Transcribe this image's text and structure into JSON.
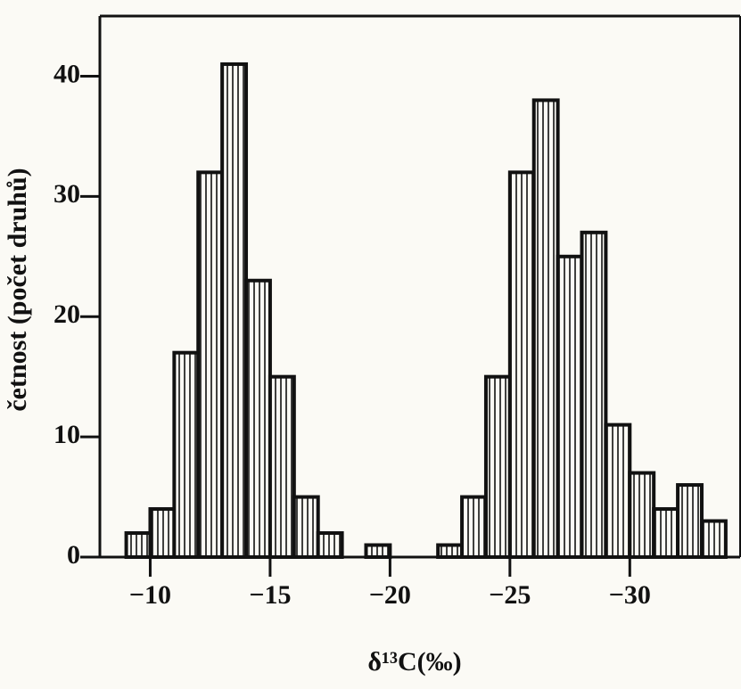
{
  "chart_data": {
    "type": "histogram",
    "y_label": "četnost (počet druhů)",
    "x_label": "δ¹³C(‰)",
    "bins": [
      -9,
      -10,
      -11,
      -12,
      -13,
      -14,
      -15,
      -16,
      -17,
      -18,
      -19,
      -20,
      -21,
      -22,
      -23,
      -24,
      -25,
      -26,
      -27,
      -28,
      -29,
      -30,
      -31,
      -32,
      -33,
      -34
    ],
    "counts": [
      2,
      4,
      17,
      32,
      41,
      23,
      15,
      5,
      2,
      0,
      1,
      0,
      0,
      1,
      5,
      15,
      32,
      38,
      25,
      27,
      11,
      7,
      4,
      6,
      3
    ],
    "color": "#111111",
    "xlim": [
      -7.9,
      -34.6
    ],
    "ylim": [
      0,
      45
    ],
    "xticks": [
      {
        "value": -10,
        "label": "−10"
      },
      {
        "value": -15,
        "label": "−15"
      },
      {
        "value": -20,
        "label": "−20"
      },
      {
        "value": -25,
        "label": "−25"
      },
      {
        "value": -30,
        "label": "−30"
      }
    ],
    "yticks": [
      0,
      10,
      20,
      30,
      40
    ]
  }
}
